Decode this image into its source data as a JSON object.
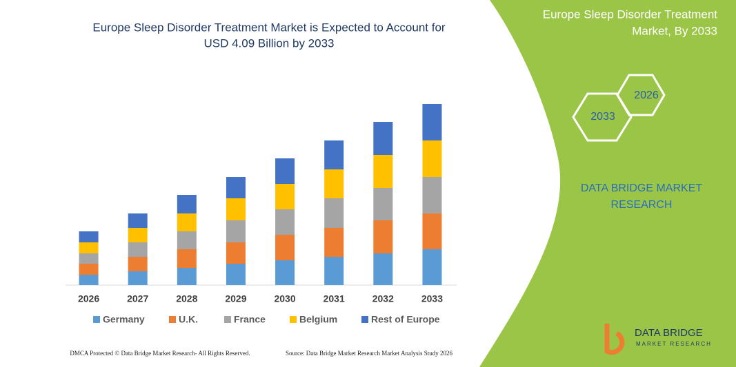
{
  "chart_data": {
    "type": "bar",
    "stacked": true,
    "title": [
      "Europe Sleep Disorder Treatment Market is Expected to Account for",
      "USD 4.09 Billion by 2033"
    ],
    "categories": [
      "2026",
      "2027",
      "2028",
      "2029",
      "2030",
      "2031",
      "2032",
      "2033"
    ],
    "series": [
      {
        "name": "Germany",
        "color": "#5b9bd5",
        "values": [
          15,
          20,
          25,
          31,
          36,
          41,
          46,
          52
        ]
      },
      {
        "name": "U.K.",
        "color": "#ed7d31",
        "values": [
          16,
          21,
          27,
          31,
          37,
          42,
          48,
          52
        ]
      },
      {
        "name": "France",
        "color": "#a5a5a5",
        "values": [
          15,
          21,
          26,
          32,
          37,
          43,
          47,
          53
        ]
      },
      {
        "name": "Belgium",
        "color": "#ffc000",
        "values": [
          16,
          21,
          26,
          32,
          37,
          42,
          48,
          53
        ]
      },
      {
        "name": "Rest of Europe",
        "color": "#4472c4",
        "values": [
          16,
          21,
          27,
          31,
          37,
          42,
          48,
          53
        ]
      }
    ],
    "ylim": [
      0,
      270
    ]
  },
  "panel": {
    "heading": [
      "Europe Sleep Disorder Treatment",
      "Market, By 2033"
    ],
    "hexagons": [
      "2026",
      "2033"
    ],
    "brand": [
      "DATA BRIDGE MARKET",
      "RESEARCH"
    ]
  },
  "logo": {
    "name": "DATA BRIDGE",
    "tagline": "MARKET RESEARCH"
  },
  "footer": {
    "left": "DMCA Protected © Data Bridge Market Research-  All Rights Reserved.",
    "right": "Source: Data Bridge Market Research  Market Analysis Study 2026"
  }
}
